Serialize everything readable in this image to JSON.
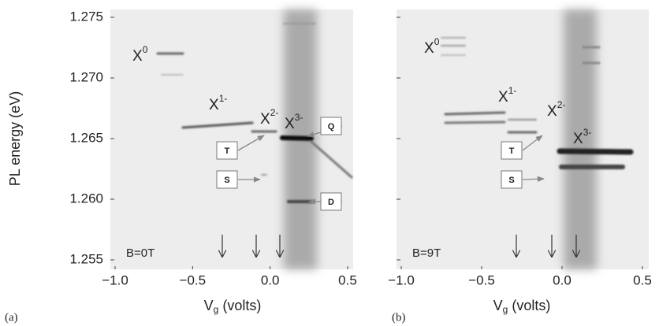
{
  "chart_data": [
    {
      "type": "image",
      "panel_label": "(a)",
      "field_label": "B=0T",
      "ylabel": "PL energy (eV)",
      "xlabel": [
        "V",
        "g",
        " (volts)"
      ],
      "xlim": [
        -1.0,
        0.5
      ],
      "xticks": [
        {
          "value": -1.0,
          "label": "−1.0"
        },
        {
          "value": -0.5,
          "label": "−0.5"
        },
        {
          "value": 0.0,
          "label": "0.0"
        },
        0.5
      ],
      "ylim": [
        1.255,
        1.275
      ],
      "yticks": [
        1.255,
        {
          "value": 1.26,
          "label": "1.260"
        },
        1.265,
        {
          "value": 1.27,
          "label": "1.270"
        },
        1.275
      ],
      "show_ytick_labels": true,
      "annotations": [
        {
          "base": "X",
          "sup": "0"
        },
        {
          "base": "X",
          "sup": "1-"
        },
        {
          "base": "X",
          "sup": "2-"
        },
        {
          "base": "X",
          "sup": "3-"
        }
      ],
      "boxes": [
        "T",
        "S",
        "Q",
        "D"
      ]
    },
    {
      "type": "image",
      "panel_label": "(b)",
      "field_label": "B=9T",
      "xlabel": [
        "V",
        "g",
        " (volts)"
      ],
      "xlim": [
        -1.0,
        0.5
      ],
      "xticks": [
        {
          "value": -1.0,
          "label": "−1.0"
        },
        {
          "value": -0.5,
          "label": "−0.5"
        },
        {
          "value": 0.0,
          "label": "0.0"
        },
        0.5
      ],
      "ylim": [
        1.255,
        1.275
      ],
      "yticks": [
        1.255,
        1.26,
        1.265,
        1.27,
        1.275
      ],
      "show_ytick_labels": false,
      "annotations": [
        {
          "base": "X",
          "sup": "0"
        },
        {
          "base": "X",
          "sup": "1-"
        },
        {
          "base": "X",
          "sup": "2-"
        },
        {
          "base": "X",
          "sup": "3-"
        }
      ],
      "boxes": [
        "T",
        "S"
      ]
    }
  ]
}
